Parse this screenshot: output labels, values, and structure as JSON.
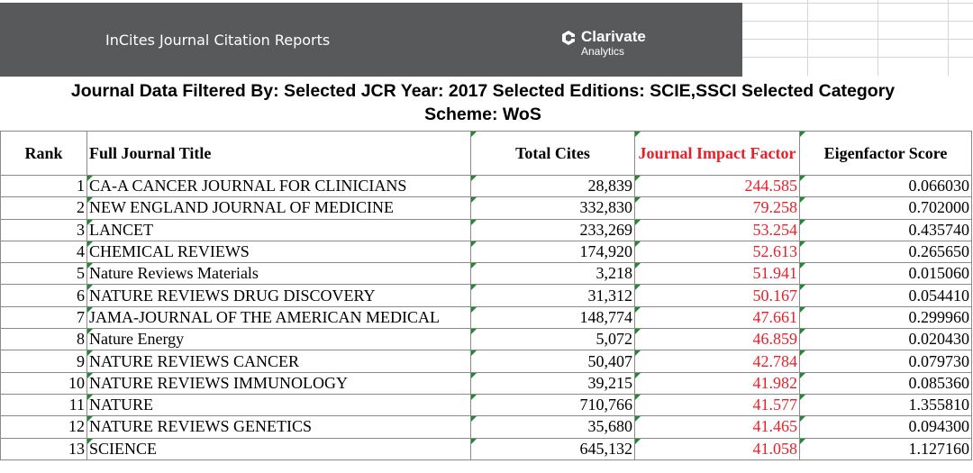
{
  "banner": {
    "title": "InCites Journal Citation Reports",
    "logo_name": "Clarivate",
    "logo_sub": "Analytics",
    "logo_icon": "clarivate-logo-icon"
  },
  "filter_line1": "Journal Data Filtered By:  Selected JCR Year: 2017 Selected Editions: SCIE,SSCI Selected Category",
  "filter_line2": "Scheme: WoS",
  "colors": {
    "banner_bg": "#58595b",
    "jif_red": "#e8202a",
    "cell_marker_green": "#1f8a2f"
  },
  "table": {
    "headers": {
      "rank": "Rank",
      "title": "Full Journal Title",
      "cites": "Total Cites",
      "jif": "Journal Impact Factor",
      "eigen": "Eigenfactor Score"
    },
    "rows": [
      {
        "rank": "1",
        "title": "CA-A CANCER JOURNAL FOR CLINICIANS",
        "cites": "28,839",
        "jif": "244.585",
        "eigen": "0.066030"
      },
      {
        "rank": "2",
        "title": "NEW ENGLAND JOURNAL OF MEDICINE",
        "cites": "332,830",
        "jif": "79.258",
        "eigen": "0.702000"
      },
      {
        "rank": "3",
        "title": "LANCET",
        "cites": "233,269",
        "jif": "53.254",
        "eigen": "0.435740"
      },
      {
        "rank": "4",
        "title": "CHEMICAL REVIEWS",
        "cites": "174,920",
        "jif": "52.613",
        "eigen": "0.265650"
      },
      {
        "rank": "5",
        "title": "Nature Reviews Materials",
        "cites": "3,218",
        "jif": "51.941",
        "eigen": "0.015060"
      },
      {
        "rank": "6",
        "title": "NATURE REVIEWS DRUG DISCOVERY",
        "cites": "31,312",
        "jif": "50.167",
        "eigen": "0.054410"
      },
      {
        "rank": "7",
        "title": "JAMA-JOURNAL OF THE AMERICAN MEDICAL",
        "cites": "148,774",
        "jif": "47.661",
        "eigen": "0.299960"
      },
      {
        "rank": "8",
        "title": "Nature Energy",
        "cites": "5,072",
        "jif": "46.859",
        "eigen": "0.020430"
      },
      {
        "rank": "9",
        "title": "NATURE REVIEWS CANCER",
        "cites": "50,407",
        "jif": "42.784",
        "eigen": "0.079730"
      },
      {
        "rank": "10",
        "title": "NATURE REVIEWS IMMUNOLOGY",
        "cites": "39,215",
        "jif": "41.982",
        "eigen": "0.085360"
      },
      {
        "rank": "11",
        "title": "NATURE",
        "cites": "710,766",
        "jif": "41.577",
        "eigen": "1.355810"
      },
      {
        "rank": "12",
        "title": "NATURE REVIEWS GENETICS",
        "cites": "35,680",
        "jif": "41.465",
        "eigen": "0.094300"
      },
      {
        "rank": "13",
        "title": "SCIENCE",
        "cites": "645,132",
        "jif": "41.058",
        "eigen": "1.127160"
      }
    ]
  }
}
